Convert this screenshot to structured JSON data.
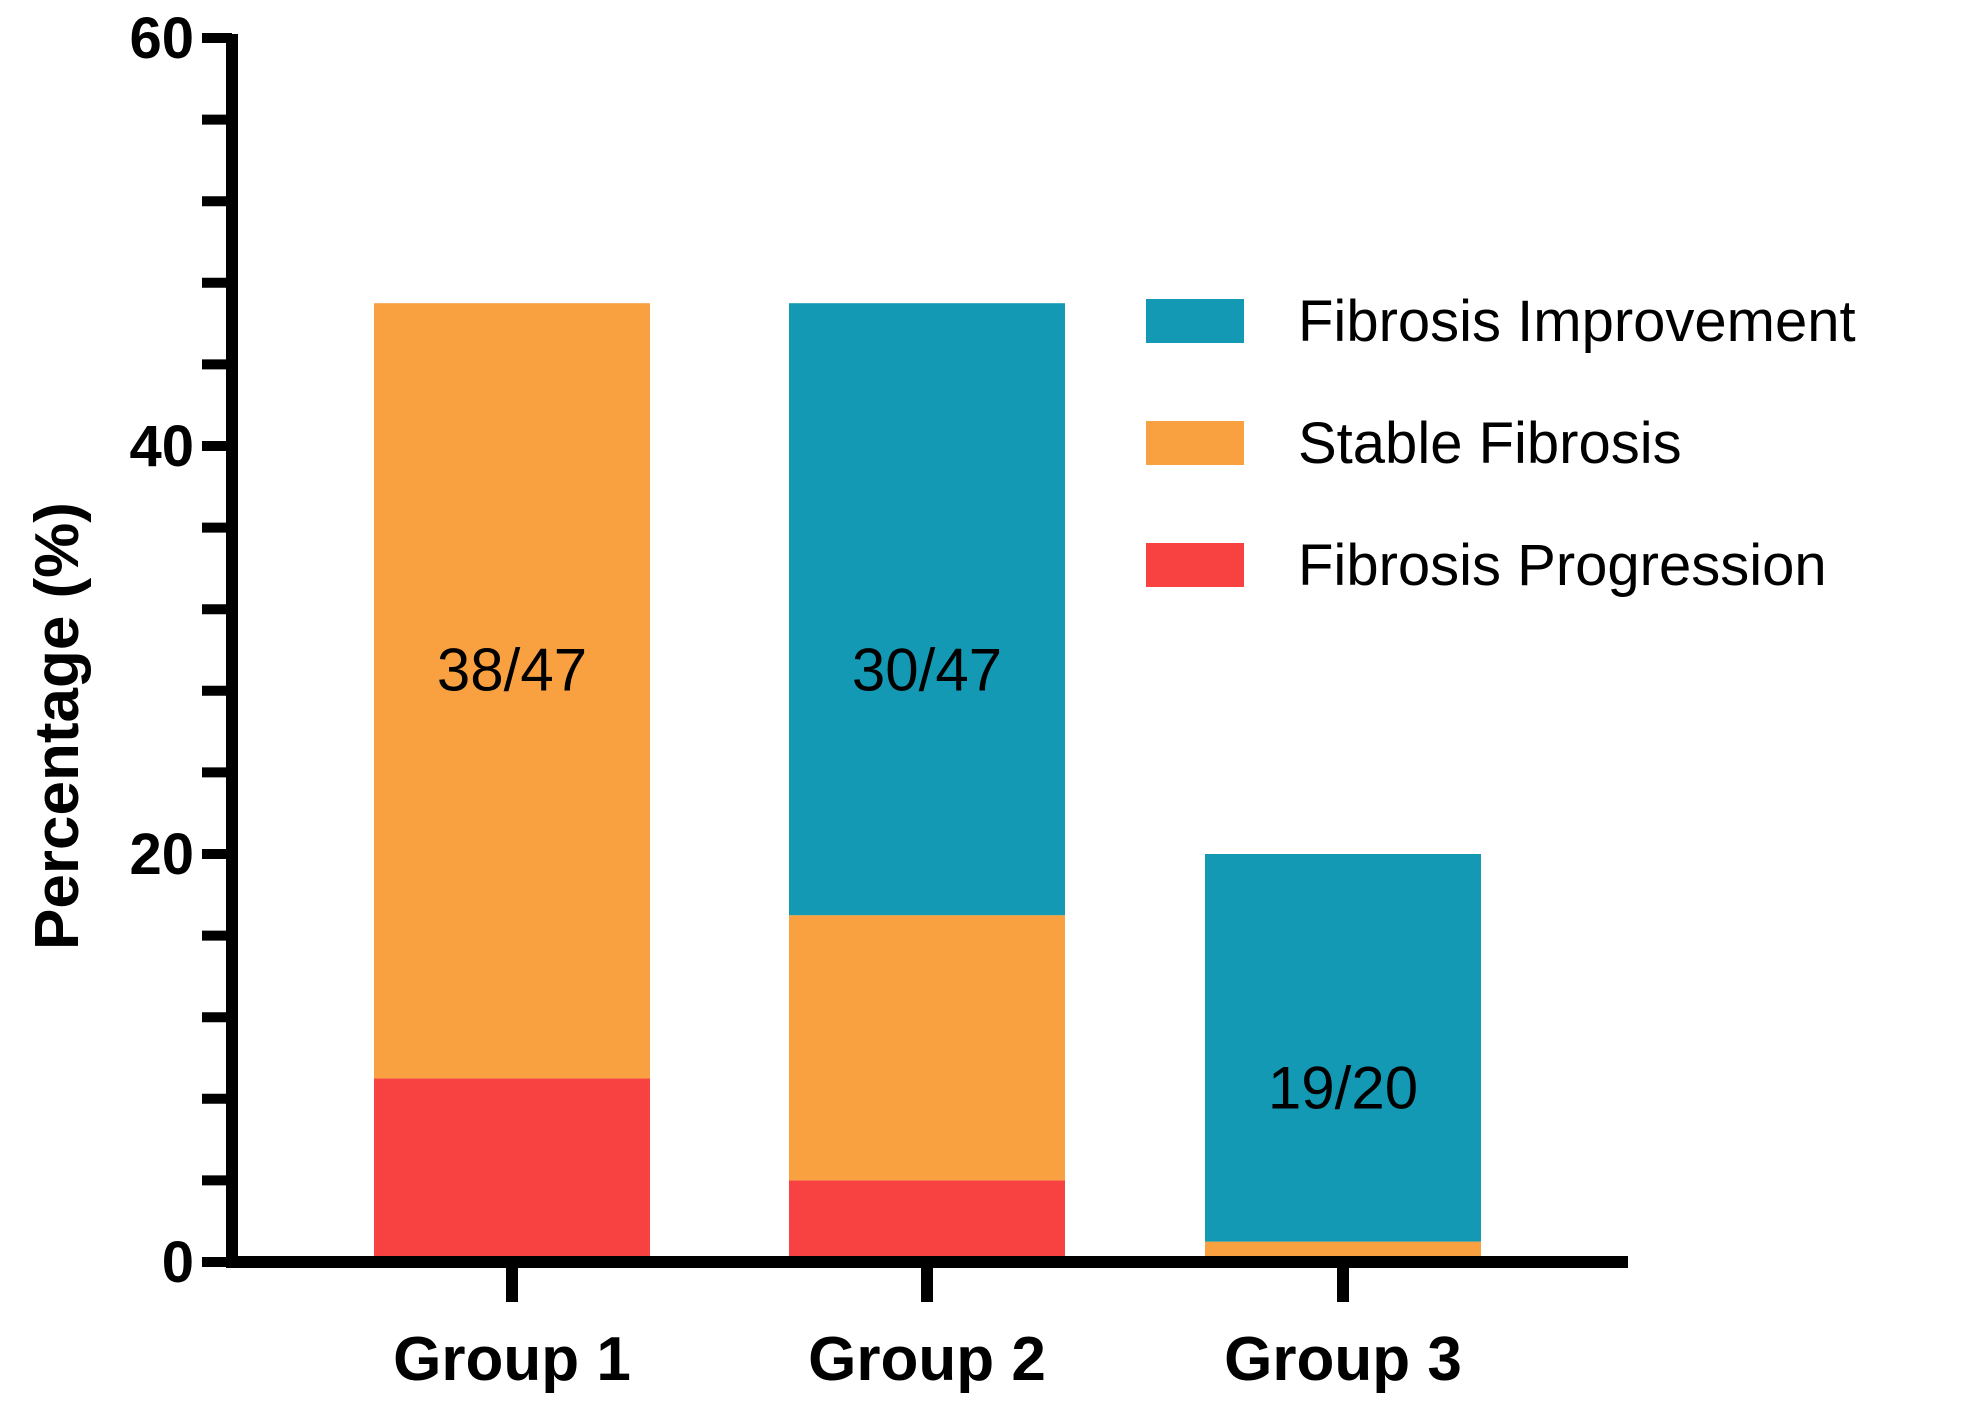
{
  "chart_data": {
    "type": "bar",
    "stacked": true,
    "categories": [
      "Group 1",
      "Group 2",
      "Group 3"
    ],
    "series": [
      {
        "name": "Fibrosis Progression",
        "color": "#f84242",
        "values": [
          9,
          4,
          0
        ]
      },
      {
        "name": "Stable Fibrosis",
        "color": "#f9a041",
        "values": [
          38,
          13,
          1
        ]
      },
      {
        "name": "Fibrosis Improvement",
        "color": "#1399b4",
        "values": [
          0,
          30,
          19
        ]
      }
    ],
    "data_labels": [
      "38/47",
      "30/47",
      "19/20"
    ],
    "title": "",
    "xlabel": "",
    "ylabel": "Percentage  (%)",
    "ylim": [
      0,
      60
    ],
    "y_major_ticks": [
      0,
      20,
      40,
      60
    ],
    "y_minor_step": 4,
    "grid": false,
    "legend_position": "top-right",
    "legend_order": [
      "Fibrosis Improvement",
      "Stable Fibrosis",
      "Fibrosis Progression"
    ]
  }
}
